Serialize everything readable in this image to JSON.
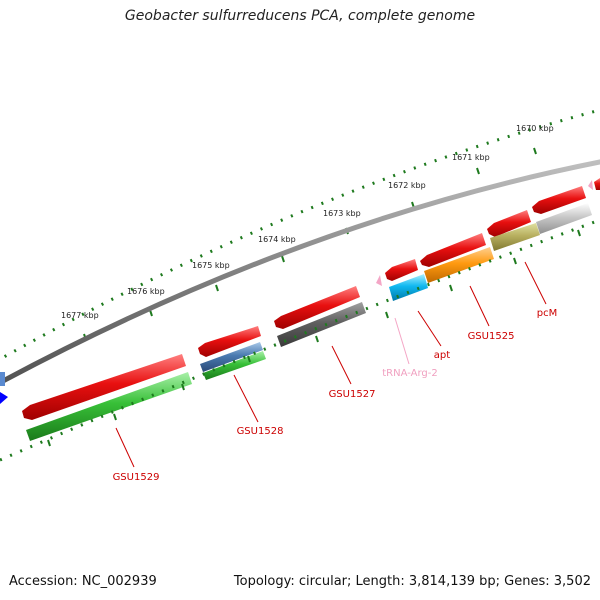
{
  "title": "Geobacter sulfurreducens PCA, complete genome",
  "footer": {
    "accession": "Accession: NC_002939",
    "summary": "Topology: circular; Length: 3,814,139 bp; Genes: 3,502"
  },
  "scale": {
    "ticks": [
      "1670 kbp",
      "1671 kbp",
      "1672 kbp",
      "1673 kbp",
      "1674 kbp",
      "1675 kbp",
      "1676 kbp",
      "1677 kbp"
    ]
  },
  "labels": [
    {
      "text": "GSU1529",
      "color": "#cc0000"
    },
    {
      "text": "GSU1528",
      "color": "#cc0000"
    },
    {
      "text": "GSU1527",
      "color": "#cc0000"
    },
    {
      "text": "tRNA-Arg-2",
      "color": "#f0a0c0"
    },
    {
      "text": "apt",
      "color": "#cc0000"
    },
    {
      "text": "GSU1525",
      "color": "#cc0000"
    },
    {
      "text": "pcM",
      "color": "#cc0000"
    }
  ],
  "colors": {
    "backbone": "#808080",
    "tick": "#1e7a1e",
    "gene": "#e81010",
    "cds": "#3cc03c",
    "trna": "#f4a6c6"
  }
}
